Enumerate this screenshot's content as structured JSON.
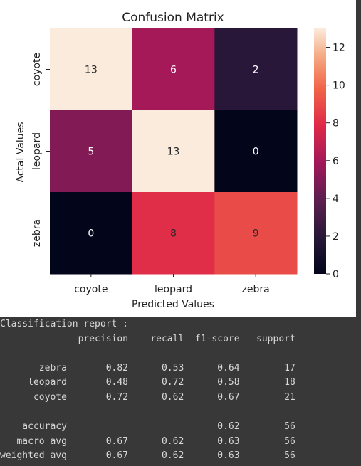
{
  "chart_data": {
    "type": "heatmap",
    "title": "Confusion Matrix",
    "xlabel": "Predicted Values",
    "ylabel": "Actal Values",
    "x_categories": [
      "coyote",
      "leopard",
      "zebra"
    ],
    "y_categories": [
      "coyote",
      "leopard",
      "zebra"
    ],
    "values": [
      [
        13,
        6,
        2
      ],
      [
        5,
        13,
        0
      ],
      [
        0,
        8,
        9
      ]
    ],
    "colorbar": {
      "range": [
        0,
        13
      ],
      "ticks": [
        "0",
        "2",
        "4",
        "6",
        "8",
        "10",
        "12"
      ],
      "colormap": "rocket"
    }
  },
  "report": {
    "lines": [
      "Classification report :",
      "              precision    recall  f1-score   support",
      "",
      "       zebra       0.82      0.53      0.64        17",
      "     leopard       0.48      0.72      0.58        18",
      "      coyote       0.72      0.62      0.67        21",
      "",
      "    accuracy                           0.62        56",
      "   macro avg       0.67      0.62      0.63        56",
      "weighted avg       0.67      0.62      0.63        56"
    ]
  }
}
